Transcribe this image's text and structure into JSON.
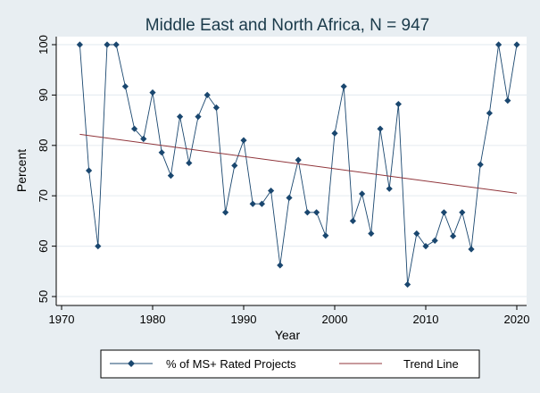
{
  "chart_data": {
    "type": "line",
    "title": "Middle East and North Africa, N = 947",
    "xlabel": "Year",
    "ylabel": "Percent",
    "xlim": [
      1970,
      2020
    ],
    "ylim": [
      50,
      100
    ],
    "x_ticks": [
      1970,
      1980,
      1990,
      2000,
      2010,
      2020
    ],
    "y_ticks": [
      50,
      60,
      70,
      80,
      90,
      100
    ],
    "grid": "horizontal",
    "legend_position": "bottom",
    "series": [
      {
        "name": "% of MS+ Rated Projects",
        "color": "#1a476f",
        "marker": "diamond",
        "x": [
          1972,
          1973,
          1974,
          1975,
          1976,
          1977,
          1978,
          1979,
          1980,
          1981,
          1982,
          1983,
          1984,
          1985,
          1986,
          1987,
          1988,
          1989,
          1990,
          1991,
          1992,
          1993,
          1994,
          1995,
          1996,
          1997,
          1998,
          1999,
          2000,
          2001,
          2002,
          2003,
          2004,
          2005,
          2006,
          2007,
          2008,
          2009,
          2010,
          2011,
          2012,
          2013,
          2014,
          2015,
          2016,
          2017,
          2018,
          2019,
          2020
        ],
        "y": [
          100,
          75,
          60,
          100,
          100,
          91.7,
          83.3,
          81.3,
          90.5,
          78.6,
          74,
          85.7,
          76.5,
          85.7,
          90,
          87.5,
          66.7,
          76,
          81,
          68.4,
          68.4,
          71,
          56.2,
          69.6,
          77.1,
          66.7,
          66.7,
          62.1,
          82.4,
          91.7,
          65,
          70.4,
          62.5,
          83.3,
          71.4,
          88.2,
          52.4,
          62.5,
          60,
          61.1,
          66.7,
          62,
          66.7,
          59.4,
          76.2,
          86.4,
          100,
          88.9,
          100
        ]
      },
      {
        "name": "Trend Line",
        "color": "#90353b",
        "marker": "none",
        "x": [
          1972,
          2020
        ],
        "y": [
          82.2,
          70.5
        ]
      }
    ]
  }
}
